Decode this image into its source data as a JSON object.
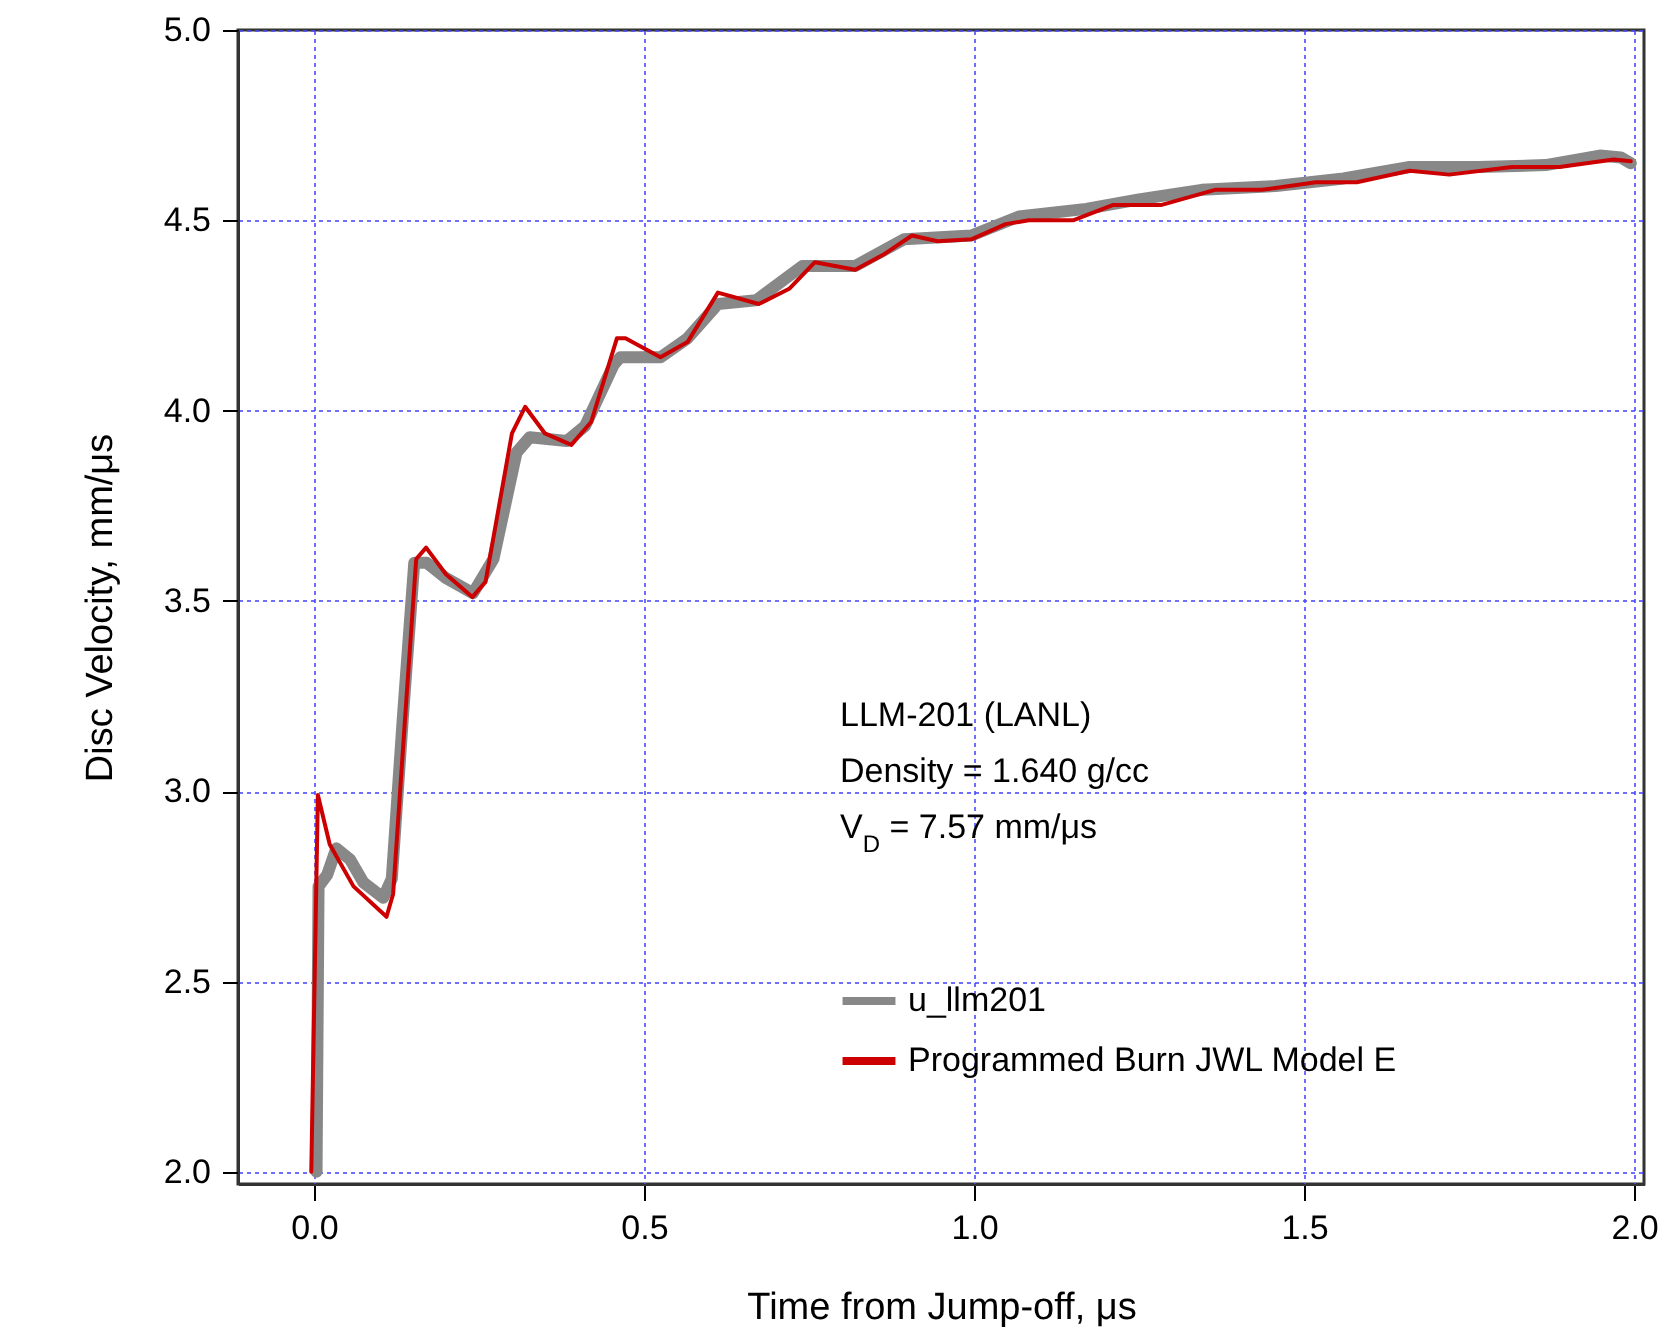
{
  "chart_data": {
    "type": "line",
    "xlabel": "Time from Jump-off,  μs",
    "ylabel": "Disc Velocity,  mm/μs",
    "annotations": [
      "LLM-201 (LANL)",
      "Density = 1.640 g/cc",
      "V$_{D}$ = 7.57 mm/μs"
    ],
    "xlim": [
      -0.115,
      2.015
    ],
    "ylim": [
      1.968,
      5.0
    ],
    "xticks": [
      {
        "value": 0,
        "label": "0.0"
      },
      {
        "value": 0.5,
        "label": "0.5"
      },
      {
        "value": 1,
        "label": "1.0"
      },
      {
        "value": 1.5,
        "label": "1.5"
      },
      {
        "value": 2,
        "label": "2.0"
      }
    ],
    "yticks": [
      {
        "value": 2,
        "label": "2.0"
      },
      {
        "value": 2.5,
        "label": "2.5"
      },
      {
        "value": 3,
        "label": "3.0"
      },
      {
        "value": 3.5,
        "label": "3.5"
      },
      {
        "value": 4,
        "label": "4.0"
      },
      {
        "value": 4.5,
        "label": "4.5"
      },
      {
        "value": 5,
        "label": "5.0"
      }
    ],
    "grid": true,
    "legend": "bottom right",
    "marker": "none",
    "line_style": "solid",
    "series": [
      {
        "name": "u_llm201",
        "color": "#888888",
        "x": [
          0.004,
          0.007,
          0.02,
          0.034,
          0.055,
          0.075,
          0.105,
          0.118,
          0.135,
          0.152,
          0.171,
          0.2,
          0.241,
          0.272,
          0.307,
          0.327,
          0.383,
          0.411,
          0.454,
          0.464,
          0.525,
          0.566,
          0.612,
          0.67,
          0.74,
          0.82,
          0.894,
          0.996,
          1.068,
          1.17,
          1.25,
          1.345,
          1.457,
          1.56,
          1.66,
          1.764,
          1.866,
          1.948,
          1.98,
          1.995
        ],
        "values": [
          2.0,
          2.75,
          2.78,
          2.85,
          2.82,
          2.76,
          2.72,
          2.77,
          3.2,
          3.6,
          3.6,
          3.56,
          3.52,
          3.61,
          3.89,
          3.93,
          3.92,
          3.96,
          4.12,
          4.14,
          4.14,
          4.19,
          4.28,
          4.29,
          4.38,
          4.38,
          4.45,
          4.46,
          4.51,
          4.53,
          4.555,
          4.58,
          4.59,
          4.61,
          4.64,
          4.64,
          4.645,
          4.67,
          4.665,
          4.65
        ]
      },
      {
        "name": "Programmed Burn JWL Model E",
        "color": "#cc0000",
        "x": [
          -0.004,
          0.006,
          0.024,
          0.06,
          0.11,
          0.12,
          0.14,
          0.155,
          0.17,
          0.2,
          0.24,
          0.26,
          0.3,
          0.32,
          0.35,
          0.39,
          0.42,
          0.459,
          0.472,
          0.525,
          0.566,
          0.612,
          0.674,
          0.72,
          0.759,
          0.82,
          0.863,
          0.906,
          0.945,
          0.996,
          1.048,
          1.083,
          1.15,
          1.21,
          1.283,
          1.365,
          1.436,
          1.518,
          1.58,
          1.66,
          1.72,
          1.815,
          1.887,
          1.969,
          1.995
        ],
        "values": [
          2.0,
          2.99,
          2.86,
          2.75,
          2.67,
          2.73,
          3.24,
          3.61,
          3.64,
          3.57,
          3.51,
          3.55,
          3.94,
          4.01,
          3.94,
          3.91,
          3.97,
          4.19,
          4.19,
          4.14,
          4.18,
          4.31,
          4.28,
          4.32,
          4.39,
          4.37,
          4.41,
          4.46,
          4.445,
          4.45,
          4.49,
          4.5,
          4.5,
          4.54,
          4.54,
          4.58,
          4.58,
          4.6,
          4.6,
          4.63,
          4.62,
          4.64,
          4.64,
          4.66,
          4.655
        ]
      }
    ]
  }
}
